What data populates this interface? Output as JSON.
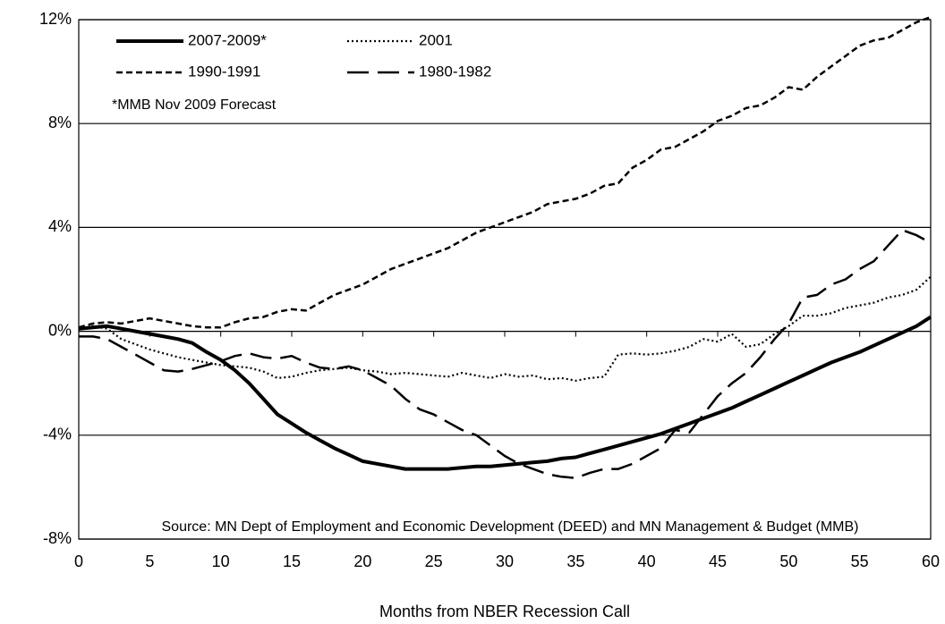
{
  "chart_data": {
    "type": "line",
    "x_label": "Months from NBER Recession Call",
    "note": "*MMB Nov 2009 Forecast",
    "source": "Source: MN Dept of Employment and Economic Development (DEED) and MN Management & Budget (MMB)",
    "x": [
      0,
      1,
      2,
      3,
      4,
      5,
      6,
      7,
      8,
      9,
      10,
      11,
      12,
      13,
      14,
      15,
      16,
      17,
      18,
      19,
      20,
      21,
      22,
      23,
      24,
      25,
      26,
      27,
      28,
      29,
      30,
      31,
      32,
      33,
      34,
      35,
      36,
      37,
      38,
      39,
      40,
      41,
      42,
      43,
      44,
      45,
      46,
      47,
      48,
      49,
      50,
      51,
      52,
      53,
      54,
      55,
      56,
      57,
      58,
      59,
      60
    ],
    "xlim": [
      0,
      60
    ],
    "xticks": [
      0,
      5,
      10,
      15,
      20,
      25,
      30,
      35,
      40,
      45,
      50,
      55,
      60
    ],
    "ylim": [
      -8,
      12
    ],
    "yticks": [
      {
        "value": -8,
        "label": "-8%"
      },
      {
        "value": -4,
        "label": "-4%"
      },
      {
        "value": 0,
        "label": "0%"
      },
      {
        "value": 4,
        "label": "4%"
      },
      {
        "value": 8,
        "label": "8%"
      },
      {
        "value": 12,
        "label": "12%"
      }
    ],
    "grid": true,
    "legend": "upper left",
    "series": [
      {
        "name": "2007-2009*",
        "color": "#000000",
        "values": [
          0.1,
          0.15,
          0.2,
          0.1,
          0.0,
          -0.1,
          -0.2,
          -0.3,
          -0.45,
          -0.8,
          -1.1,
          -1.5,
          -2.0,
          -2.6,
          -3.2,
          -3.55,
          -3.9,
          -4.2,
          -4.5,
          -4.75,
          -5.0,
          -5.1,
          -5.2,
          -5.3,
          -5.3,
          -5.3,
          -5.3,
          -5.25,
          -5.2,
          -5.2,
          -5.15,
          -5.1,
          -5.05,
          -5.0,
          -4.9,
          -4.85,
          -4.7,
          -4.55,
          -4.4,
          -4.25,
          -4.1,
          -3.95,
          -3.75,
          -3.55,
          -3.35,
          -3.15,
          -2.95,
          -2.7,
          -2.45,
          -2.2,
          -1.95,
          -1.7,
          -1.45,
          -1.2,
          -1.0,
          -0.8,
          -0.55,
          -0.3,
          -0.05,
          0.2,
          0.55
        ]
      },
      {
        "name": "2001",
        "color": "#000000",
        "values": [
          0.1,
          0.2,
          0.1,
          -0.3,
          -0.5,
          -0.7,
          -0.85,
          -1.0,
          -1.1,
          -1.2,
          -1.3,
          -1.35,
          -1.4,
          -1.55,
          -1.8,
          -1.75,
          -1.6,
          -1.5,
          -1.45,
          -1.4,
          -1.5,
          -1.55,
          -1.65,
          -1.6,
          -1.65,
          -1.7,
          -1.75,
          -1.6,
          -1.7,
          -1.8,
          -1.65,
          -1.75,
          -1.7,
          -1.85,
          -1.8,
          -1.9,
          -1.8,
          -1.75,
          -0.9,
          -0.85,
          -0.9,
          -0.85,
          -0.75,
          -0.6,
          -0.3,
          -0.4,
          -0.1,
          -0.6,
          -0.5,
          -0.1,
          0.2,
          0.6,
          0.6,
          0.7,
          0.9,
          1.0,
          1.1,
          1.3,
          1.4,
          1.6,
          2.1
        ]
      },
      {
        "name": "1990-1991",
        "color": "#000000",
        "values": [
          0.15,
          0.3,
          0.35,
          0.3,
          0.4,
          0.5,
          0.4,
          0.3,
          0.2,
          0.15,
          0.15,
          0.35,
          0.5,
          0.55,
          0.75,
          0.85,
          0.8,
          1.1,
          1.4,
          1.6,
          1.8,
          2.1,
          2.4,
          2.6,
          2.8,
          3.0,
          3.2,
          3.5,
          3.8,
          4.0,
          4.2,
          4.4,
          4.6,
          4.9,
          5.0,
          5.1,
          5.3,
          5.6,
          5.7,
          6.3,
          6.6,
          7.0,
          7.1,
          7.4,
          7.7,
          8.1,
          8.3,
          8.6,
          8.7,
          9.0,
          9.4,
          9.3,
          9.8,
          10.2,
          10.6,
          11.0,
          11.2,
          11.3,
          11.6,
          11.9,
          12.1
        ]
      },
      {
        "name": "1980-1982",
        "color": "#000000",
        "values": [
          -0.2,
          -0.2,
          -0.3,
          -0.6,
          -0.9,
          -1.2,
          -1.5,
          -1.55,
          -1.45,
          -1.3,
          -1.15,
          -0.95,
          -0.85,
          -1.0,
          -1.05,
          -0.95,
          -1.2,
          -1.4,
          -1.45,
          -1.35,
          -1.5,
          -1.8,
          -2.1,
          -2.6,
          -3.0,
          -3.2,
          -3.5,
          -3.8,
          -4.0,
          -4.4,
          -4.8,
          -5.1,
          -5.3,
          -5.5,
          -5.6,
          -5.65,
          -5.45,
          -5.3,
          -5.3,
          -5.1,
          -4.8,
          -4.5,
          -3.8,
          -3.9,
          -3.2,
          -2.5,
          -2.0,
          -1.6,
          -1.0,
          -0.3,
          0.3,
          1.3,
          1.4,
          1.8,
          2.0,
          2.4,
          2.7,
          3.3,
          3.9,
          3.7,
          3.4
        ]
      }
    ]
  }
}
